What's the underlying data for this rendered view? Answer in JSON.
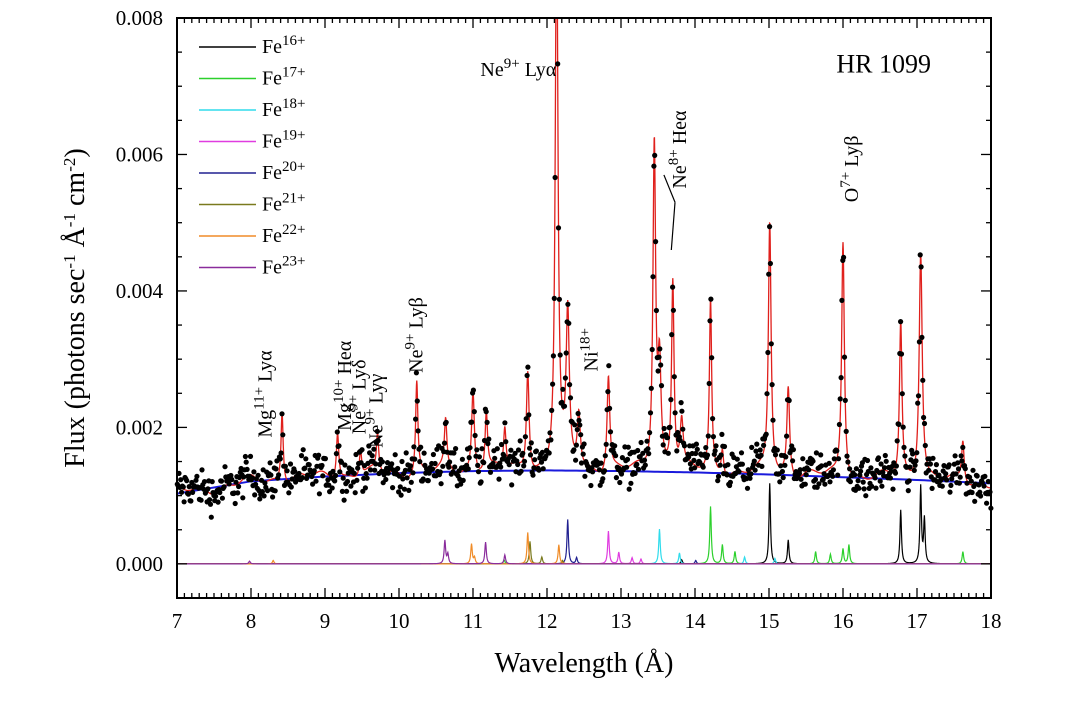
{
  "chart_data": {
    "type": "line",
    "title": "HR 1099",
    "xlabel": "Wavelength (Å)",
    "ylabel": "Flux (photons sec-1 Å-1 cm-2)",
    "ylabel_parts": [
      "Flux (photons sec",
      "-1",
      " Å",
      "-1",
      " cm",
      "-2",
      ")"
    ],
    "xlim": [
      7,
      18
    ],
    "ylim": [
      -0.0005,
      0.008
    ],
    "xticks": [
      7,
      8,
      9,
      10,
      11,
      12,
      13,
      14,
      15,
      16,
      17,
      18
    ],
    "xtick_labels": [
      "7",
      "8",
      "9",
      "10",
      "11",
      "12",
      "13",
      "14",
      "15",
      "16",
      "17",
      "18"
    ],
    "yticks": [
      0.0,
      0.002,
      0.004,
      0.006,
      0.008
    ],
    "ytick_labels": [
      "0.000",
      "0.002",
      "0.004",
      "0.006",
      "0.008"
    ],
    "legend_position": "top-left",
    "continuum": {
      "name": "Continuum",
      "color": "#1a1adc",
      "x": [
        7.0,
        8.0,
        9.0,
        10.0,
        11.0,
        12.0,
        13.0,
        14.0,
        15.0,
        16.0,
        17.0,
        18.0
      ],
      "y": [
        0.00103,
        0.00121,
        0.00128,
        0.00133,
        0.00136,
        0.00137,
        0.00136,
        0.00134,
        0.00131,
        0.00127,
        0.00123,
        0.00118
      ]
    },
    "model_color": "#e0201c",
    "data_color": "#000000",
    "model_lines": [
      {
        "x": 8.42,
        "amp": 0.00105,
        "w": 0.018
      },
      {
        "x": 9.17,
        "amp": 0.0007,
        "w": 0.02
      },
      {
        "x": 9.48,
        "amp": 0.0004,
        "w": 0.018
      },
      {
        "x": 9.71,
        "amp": 0.00055,
        "w": 0.018
      },
      {
        "x": 10.24,
        "amp": 0.00135,
        "w": 0.018
      },
      {
        "x": 10.63,
        "amp": 0.0007,
        "w": 0.02
      },
      {
        "x": 11.0,
        "amp": 0.0012,
        "w": 0.022
      },
      {
        "x": 11.18,
        "amp": 0.00085,
        "w": 0.02
      },
      {
        "x": 11.43,
        "amp": 0.0006,
        "w": 0.02
      },
      {
        "x": 11.74,
        "amp": 0.0015,
        "w": 0.022
      },
      {
        "x": 12.13,
        "amp": 0.0082,
        "w": 0.022
      },
      {
        "x": 12.28,
        "amp": 0.0022,
        "w": 0.025
      },
      {
        "x": 12.43,
        "amp": 0.0008,
        "w": 0.025
      },
      {
        "x": 12.83,
        "amp": 0.0014,
        "w": 0.022
      },
      {
        "x": 13.45,
        "amp": 0.0048,
        "w": 0.022
      },
      {
        "x": 13.52,
        "amp": 0.0015,
        "w": 0.025
      },
      {
        "x": 13.7,
        "amp": 0.0028,
        "w": 0.02
      },
      {
        "x": 13.82,
        "amp": 0.0007,
        "w": 0.025
      },
      {
        "x": 14.21,
        "amp": 0.0025,
        "w": 0.018
      },
      {
        "x": 14.37,
        "amp": 0.0004,
        "w": 0.02
      },
      {
        "x": 15.01,
        "amp": 0.0037,
        "w": 0.022
      },
      {
        "x": 15.26,
        "amp": 0.0013,
        "w": 0.022
      },
      {
        "x": 16.0,
        "amp": 0.0035,
        "w": 0.022
      },
      {
        "x": 16.78,
        "amp": 0.0023,
        "w": 0.02
      },
      {
        "x": 17.05,
        "amp": 0.0034,
        "w": 0.025
      },
      {
        "x": 17.62,
        "amp": 0.0006,
        "w": 0.02
      }
    ],
    "series": [
      {
        "name": "Fe16+",
        "ion": "Fe",
        "charge": "16+",
        "color": "#000000",
        "peaks": [
          {
            "x": 15.01,
            "h": 0.00118
          },
          {
            "x": 15.26,
            "h": 0.00035
          },
          {
            "x": 16.78,
            "h": 0.00079
          },
          {
            "x": 17.05,
            "h": 0.00113
          },
          {
            "x": 17.1,
            "h": 0.00065
          },
          {
            "x": 13.82,
            "h": 6e-05
          }
        ]
      },
      {
        "name": "Fe17+",
        "ion": "Fe",
        "charge": "17+",
        "color": "#2cd02c",
        "peaks": [
          {
            "x": 14.21,
            "h": 0.00084
          },
          {
            "x": 14.37,
            "h": 0.00028
          },
          {
            "x": 14.54,
            "h": 0.00018
          },
          {
            "x": 15.63,
            "h": 0.00018
          },
          {
            "x": 15.83,
            "h": 0.00014
          },
          {
            "x": 16.0,
            "h": 0.00022
          },
          {
            "x": 16.08,
            "h": 0.00028
          },
          {
            "x": 17.62,
            "h": 0.00018
          },
          {
            "x": 11.42,
            "h": 6e-05
          }
        ]
      },
      {
        "name": "Fe18+",
        "ion": "Fe",
        "charge": "18+",
        "color": "#30dcec",
        "peaks": [
          {
            "x": 13.52,
            "h": 0.00051
          },
          {
            "x": 13.79,
            "h": 0.00016
          },
          {
            "x": 14.67,
            "h": 0.0001
          },
          {
            "x": 15.08,
            "h": 8e-05
          }
        ]
      },
      {
        "name": "Fe19+",
        "ion": "Fe",
        "charge": "19+",
        "color": "#e03ce0",
        "peaks": [
          {
            "x": 12.83,
            "h": 0.00048
          },
          {
            "x": 12.97,
            "h": 0.00017
          },
          {
            "x": 13.15,
            "h": 9e-05
          },
          {
            "x": 13.27,
            "h": 7e-05
          }
        ]
      },
      {
        "name": "Fe20+",
        "ion": "Fe",
        "charge": "20+",
        "color": "#202090",
        "peaks": [
          {
            "x": 12.28,
            "h": 0.00065
          },
          {
            "x": 12.4,
            "h": 9e-05
          },
          {
            "x": 14.01,
            "h": 5e-05
          }
        ]
      },
      {
        "name": "Fe21+",
        "ion": "Fe",
        "charge": "21+",
        "color": "#7a7a1e",
        "peaks": [
          {
            "x": 11.77,
            "h": 0.00033
          },
          {
            "x": 11.93,
            "h": 0.0001
          },
          {
            "x": 12.21,
            "h": 5e-05
          }
        ]
      },
      {
        "name": "Fe22+",
        "ion": "Fe",
        "charge": "22+",
        "color": "#f08c28",
        "peaks": [
          {
            "x": 10.98,
            "h": 0.00029
          },
          {
            "x": 11.74,
            "h": 0.00046
          },
          {
            "x": 12.16,
            "h": 0.00028
          },
          {
            "x": 11.02,
            "h": 9e-05
          },
          {
            "x": 8.3,
            "h": 5e-05
          }
        ]
      },
      {
        "name": "Fe23+",
        "ion": "Fe",
        "charge": "23+",
        "color": "#8a2c9c",
        "peaks": [
          {
            "x": 10.62,
            "h": 0.00034
          },
          {
            "x": 10.66,
            "h": 0.00014
          },
          {
            "x": 11.17,
            "h": 0.00032
          },
          {
            "x": 11.43,
            "h": 0.00013
          },
          {
            "x": 7.98,
            "h": 4e-05
          }
        ]
      }
    ],
    "annotations": [
      {
        "id": "mg11",
        "ion": "Mg",
        "charge": "11+",
        "line": " Lyα",
        "x": 8.28,
        "y": 0.00185,
        "rotate": -90
      },
      {
        "id": "mg10",
        "ion": "Mg",
        "charge": "10+",
        "line": " Heα",
        "x": 9.35,
        "y": 0.00195,
        "rotate": -90
      },
      {
        "id": "ne9d",
        "ion": "Ne",
        "charge": "9+",
        "line": " Lyδ",
        "x": 9.55,
        "y": 0.0019,
        "rotate": -90
      },
      {
        "id": "ne9g",
        "ion": "Ne",
        "charge": "9+",
        "line": " Lyγ",
        "x": 9.78,
        "y": 0.0017,
        "rotate": -90
      },
      {
        "id": "ne9b",
        "ion": "Ne",
        "charge": "9+",
        "line": " Lyβ",
        "x": 10.32,
        "y": 0.0028,
        "rotate": -90
      },
      {
        "id": "ne9a",
        "ion": "Ne",
        "charge": "9+",
        "line": " Lyα",
        "x": 11.1,
        "y": 0.00715,
        "rotate": 0
      },
      {
        "id": "ni18",
        "ion": "Ni",
        "charge": "18+",
        "line": "",
        "x": 12.68,
        "y": 0.00282,
        "rotate": -90
      },
      {
        "id": "ne8",
        "ion": "Ne",
        "charge": "8+",
        "line": " Heα",
        "x": 13.88,
        "y": 0.0055,
        "rotate": -90
      },
      {
        "id": "o7",
        "ion": "O",
        "charge": "7+",
        "line": " Lyβ",
        "x": 16.2,
        "y": 0.0053,
        "rotate": -90
      }
    ]
  }
}
